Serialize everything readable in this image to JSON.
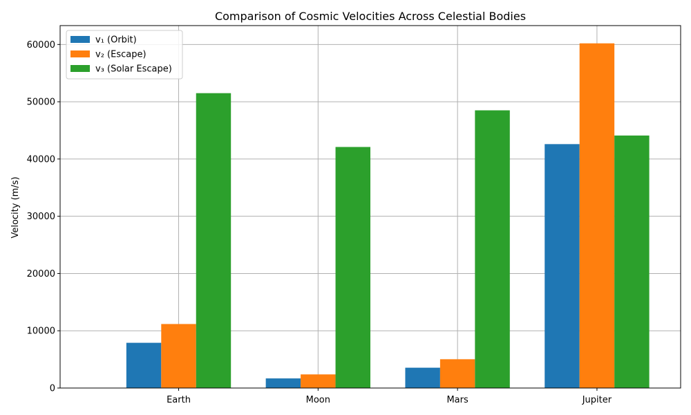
{
  "chart_data": {
    "type": "bar",
    "title": "Comparison of Cosmic Velocities Across Celestial Bodies",
    "xlabel": "",
    "ylabel": "Velocity (m/s)",
    "categories": [
      "Earth",
      "Moon",
      "Mars",
      "Jupiter"
    ],
    "series": [
      {
        "name": "v₁ (Orbit)",
        "color": "#1f77b4",
        "values": [
          7900,
          1680,
          3550,
          42600
        ]
      },
      {
        "name": "v₂ (Escape)",
        "color": "#ff7f0e",
        "values": [
          11180,
          2380,
          5030,
          60200
        ]
      },
      {
        "name": "v₃ (Solar Escape)",
        "color": "#2ca02c",
        "values": [
          51500,
          42100,
          48500,
          44100
        ]
      }
    ],
    "ylim": [
      0,
      63300
    ],
    "yticks": [
      0,
      10000,
      20000,
      30000,
      40000,
      50000,
      60000
    ],
    "grid": true,
    "legend_position": "top-left"
  }
}
